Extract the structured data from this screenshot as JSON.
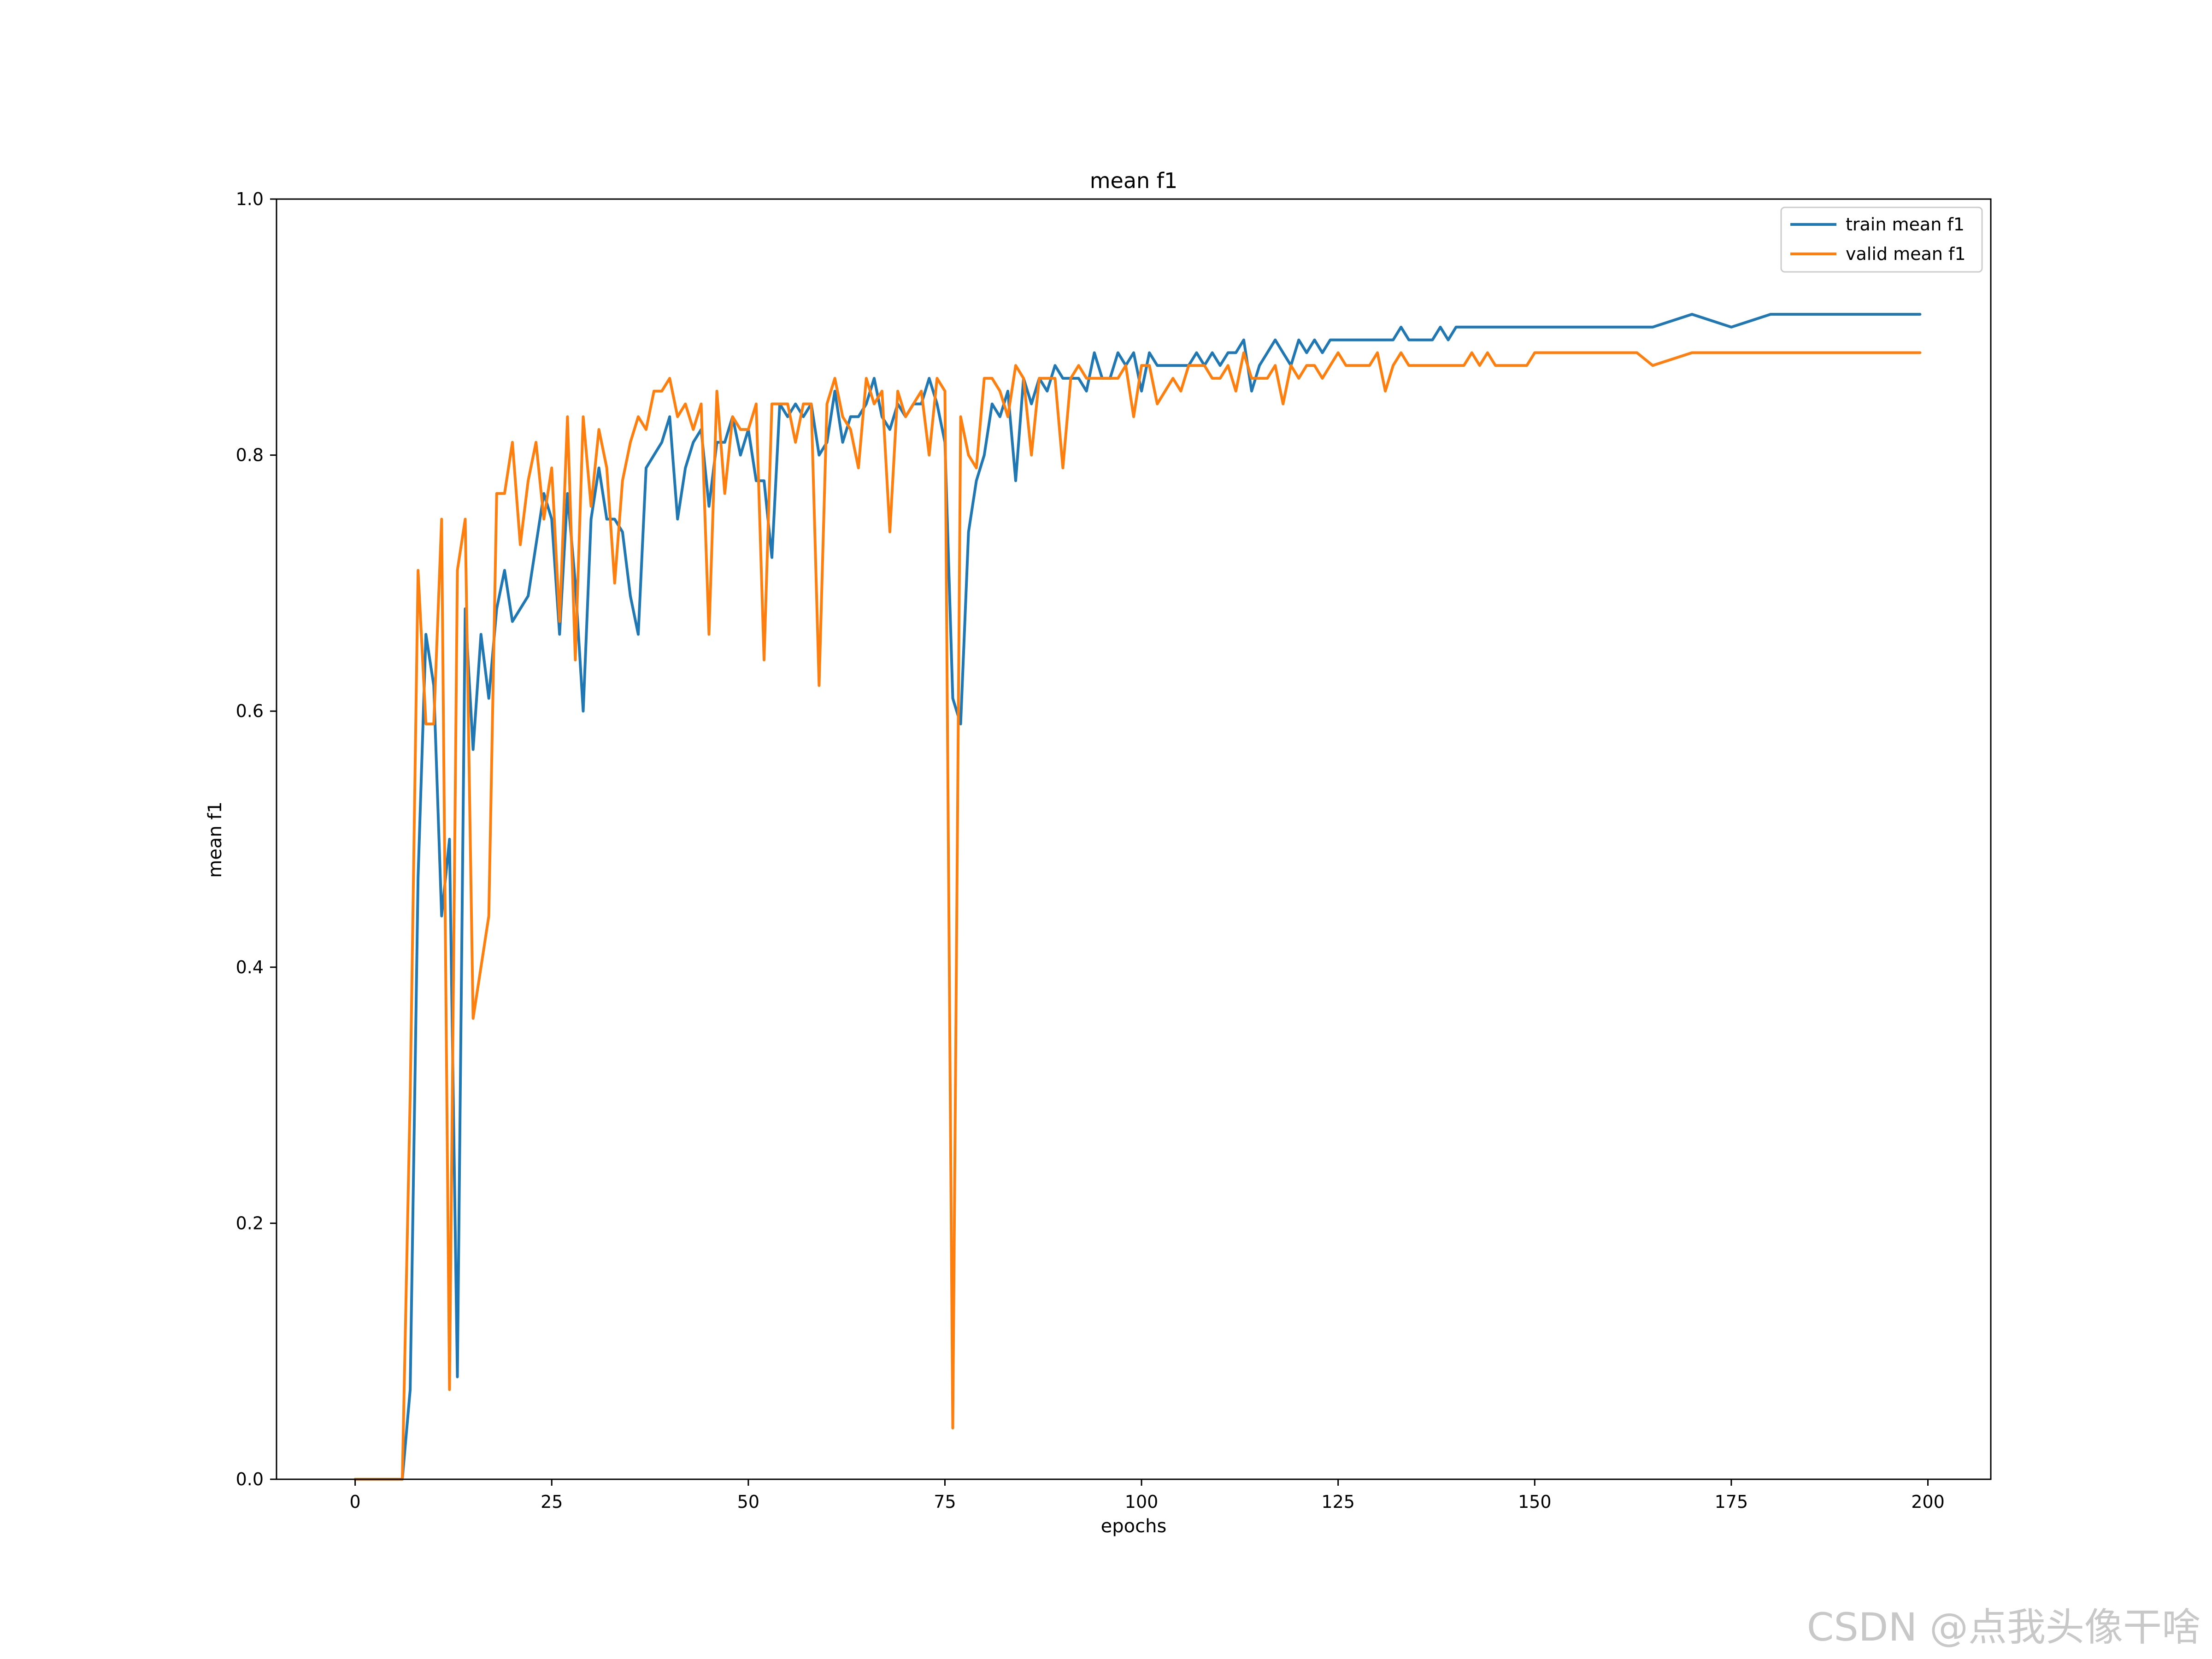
{
  "chart_data": {
    "type": "line",
    "title": "mean f1",
    "xlabel": "epochs",
    "ylabel": "mean f1",
    "xlim": [
      -10,
      208
    ],
    "ylim": [
      0.0,
      1.0
    ],
    "xticks": [
      "0",
      "25",
      "50",
      "75",
      "100",
      "125",
      "150",
      "175",
      "200"
    ],
    "yticks": [
      "0.0",
      "0.2",
      "0.4",
      "0.6",
      "0.8",
      "1.0"
    ],
    "grid": false,
    "legend_position": "top-right",
    "series": [
      {
        "name": "train mean f1",
        "color": "#1f77b4",
        "x": [
          0,
          6,
          7,
          8,
          9,
          10,
          11,
          12,
          13,
          14,
          15,
          16,
          17,
          18,
          19,
          20,
          22,
          24,
          25,
          26,
          27,
          28,
          29,
          30,
          31,
          32,
          33,
          34,
          35,
          36,
          37,
          38,
          39,
          40,
          41,
          42,
          43,
          44,
          45,
          46,
          47,
          48,
          49,
          50,
          51,
          52,
          53,
          54,
          55,
          56,
          57,
          58,
          59,
          60,
          61,
          62,
          63,
          64,
          65,
          66,
          67,
          68,
          69,
          70,
          71,
          72,
          73,
          74,
          75,
          76,
          77,
          78,
          79,
          80,
          81,
          82,
          83,
          84,
          85,
          86,
          87,
          88,
          89,
          90,
          91,
          92,
          93,
          94,
          95,
          96,
          97,
          98,
          99,
          100,
          101,
          102,
          103,
          104,
          105,
          106,
          107,
          108,
          109,
          110,
          111,
          112,
          113,
          114,
          115,
          116,
          117,
          118,
          119,
          120,
          121,
          122,
          123,
          124,
          125,
          126,
          127,
          128,
          129,
          130,
          131,
          132,
          133,
          134,
          135,
          136,
          137,
          138,
          139,
          140,
          141,
          142,
          143,
          144,
          145,
          146,
          147,
          148,
          149,
          150,
          155,
          160,
          165,
          170,
          175,
          180,
          185,
          190,
          195,
          199
        ],
        "y": [
          0.0,
          0.0,
          0.07,
          0.47,
          0.66,
          0.62,
          0.44,
          0.5,
          0.08,
          0.68,
          0.57,
          0.66,
          0.61,
          0.68,
          0.71,
          0.67,
          0.69,
          0.77,
          0.75,
          0.66,
          0.77,
          0.7,
          0.6,
          0.75,
          0.79,
          0.75,
          0.75,
          0.74,
          0.69,
          0.66,
          0.79,
          0.8,
          0.81,
          0.83,
          0.75,
          0.79,
          0.81,
          0.82,
          0.76,
          0.81,
          0.81,
          0.83,
          0.8,
          0.82,
          0.78,
          0.78,
          0.72,
          0.84,
          0.83,
          0.84,
          0.83,
          0.84,
          0.8,
          0.81,
          0.85,
          0.81,
          0.83,
          0.83,
          0.84,
          0.86,
          0.83,
          0.82,
          0.84,
          0.83,
          0.84,
          0.84,
          0.86,
          0.84,
          0.81,
          0.61,
          0.59,
          0.74,
          0.78,
          0.8,
          0.84,
          0.83,
          0.85,
          0.78,
          0.86,
          0.84,
          0.86,
          0.85,
          0.87,
          0.86,
          0.86,
          0.86,
          0.85,
          0.88,
          0.86,
          0.86,
          0.88,
          0.87,
          0.88,
          0.85,
          0.88,
          0.87,
          0.87,
          0.87,
          0.87,
          0.87,
          0.88,
          0.87,
          0.88,
          0.87,
          0.88,
          0.88,
          0.89,
          0.85,
          0.87,
          0.88,
          0.89,
          0.88,
          0.87,
          0.89,
          0.88,
          0.89,
          0.88,
          0.89,
          0.89,
          0.89,
          0.89,
          0.89,
          0.89,
          0.89,
          0.89,
          0.89,
          0.9,
          0.89,
          0.89,
          0.89,
          0.89,
          0.9,
          0.89,
          0.9,
          0.9,
          0.9,
          0.9,
          0.9,
          0.9,
          0.9,
          0.9,
          0.9,
          0.9,
          0.9,
          0.9,
          0.9,
          0.9,
          0.91,
          0.9,
          0.91,
          0.91,
          0.91,
          0.91,
          0.91
        ]
      },
      {
        "name": "valid mean f1",
        "color": "#ff7f0e",
        "x": [
          0,
          6,
          7,
          8,
          9,
          10,
          11,
          12,
          13,
          14,
          15,
          16,
          17,
          18,
          19,
          20,
          21,
          22,
          23,
          24,
          25,
          26,
          27,
          28,
          29,
          30,
          31,
          32,
          33,
          34,
          35,
          36,
          37,
          38,
          39,
          40,
          41,
          42,
          43,
          44,
          45,
          46,
          47,
          48,
          49,
          50,
          51,
          52,
          53,
          54,
          55,
          56,
          57,
          58,
          59,
          60,
          61,
          62,
          63,
          64,
          65,
          66,
          67,
          68,
          69,
          70,
          71,
          72,
          73,
          74,
          75,
          76,
          77,
          78,
          79,
          80,
          81,
          82,
          83,
          84,
          85,
          86,
          87,
          88,
          89,
          90,
          91,
          92,
          93,
          94,
          95,
          96,
          97,
          98,
          99,
          100,
          101,
          102,
          103,
          104,
          105,
          106,
          107,
          108,
          109,
          110,
          111,
          112,
          113,
          114,
          115,
          116,
          117,
          118,
          119,
          120,
          121,
          122,
          123,
          124,
          125,
          126,
          127,
          128,
          129,
          130,
          131,
          132,
          133,
          134,
          135,
          136,
          137,
          138,
          139,
          140,
          141,
          142,
          143,
          144,
          145,
          146,
          147,
          148,
          149,
          150,
          155,
          160,
          163,
          165,
          170,
          175,
          180,
          185,
          190,
          195,
          199
        ],
        "y": [
          0.0,
          0.0,
          0.3,
          0.71,
          0.59,
          0.59,
          0.75,
          0.07,
          0.71,
          0.75,
          0.36,
          0.4,
          0.44,
          0.77,
          0.77,
          0.81,
          0.73,
          0.78,
          0.81,
          0.75,
          0.79,
          0.67,
          0.83,
          0.64,
          0.83,
          0.76,
          0.82,
          0.79,
          0.7,
          0.78,
          0.81,
          0.83,
          0.82,
          0.85,
          0.85,
          0.86,
          0.83,
          0.84,
          0.82,
          0.84,
          0.66,
          0.85,
          0.77,
          0.83,
          0.82,
          0.82,
          0.84,
          0.64,
          0.84,
          0.84,
          0.84,
          0.81,
          0.84,
          0.84,
          0.62,
          0.84,
          0.86,
          0.83,
          0.82,
          0.79,
          0.86,
          0.84,
          0.85,
          0.74,
          0.85,
          0.83,
          0.84,
          0.85,
          0.8,
          0.86,
          0.85,
          0.04,
          0.83,
          0.8,
          0.79,
          0.86,
          0.86,
          0.85,
          0.83,
          0.87,
          0.86,
          0.8,
          0.86,
          0.86,
          0.86,
          0.79,
          0.86,
          0.87,
          0.86,
          0.86,
          0.86,
          0.86,
          0.86,
          0.87,
          0.83,
          0.87,
          0.87,
          0.84,
          0.85,
          0.86,
          0.85,
          0.87,
          0.87,
          0.87,
          0.86,
          0.86,
          0.87,
          0.85,
          0.88,
          0.86,
          0.86,
          0.86,
          0.87,
          0.84,
          0.87,
          0.86,
          0.87,
          0.87,
          0.86,
          0.87,
          0.88,
          0.87,
          0.87,
          0.87,
          0.87,
          0.88,
          0.85,
          0.87,
          0.88,
          0.87,
          0.87,
          0.87,
          0.87,
          0.87,
          0.87,
          0.87,
          0.87,
          0.88,
          0.87,
          0.88,
          0.87,
          0.87,
          0.87,
          0.87,
          0.87,
          0.88,
          0.88,
          0.88,
          0.88,
          0.87,
          0.88,
          0.88,
          0.88,
          0.88,
          0.88,
          0.88,
          0.88
        ]
      }
    ]
  },
  "watermark": "CSDN @点我头像干啥"
}
